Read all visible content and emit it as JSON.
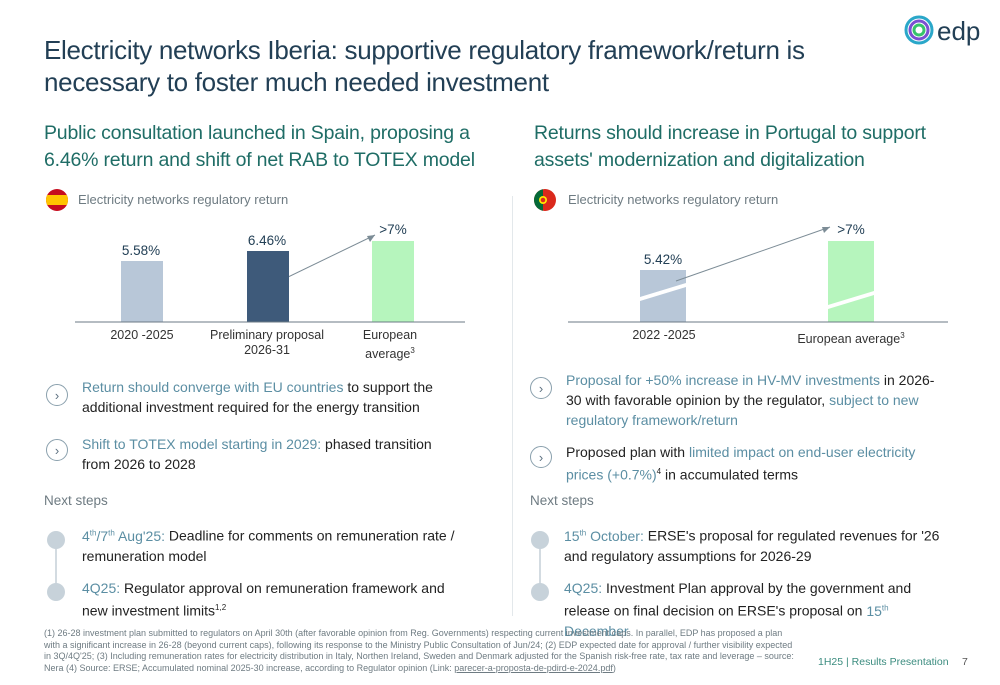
{
  "title": "Electricity networks Iberia: supportive regulatory framework/return is necessary to foster much needed investment",
  "logo": {
    "text": "edp"
  },
  "left": {
    "subhead": "Public consultation launched in Spain, proposing a 6.46% return and shift of net RAB to TOTEX model",
    "chart_label": "Electricity networks regulatory return",
    "bars": [
      {
        "value_label": "5.58%",
        "category": "2020 -2025",
        "category2": "",
        "value": 5.58
      },
      {
        "value_label": "6.46%",
        "category": "Preliminary proposal",
        "category2": "2026-31",
        "value": 6.46
      },
      {
        "value_label": ">7%",
        "category": "European",
        "category2": "average",
        "sup": "3",
        "value": 7.0
      }
    ],
    "bullet1_teal": "Return should converge with EU countries",
    "bullet1_rest": " to support the additional investment required for the energy transition",
    "bullet2_teal": "Shift to TOTEX model starting in 2029:",
    "bullet2_rest": " phased transition from 2026 to 2028",
    "next_steps": "Next steps",
    "step1_pre": "4",
    "step1_sup1": "th",
    "step1_mid": "/7",
    "step1_sup2": "th",
    "step1_teal": " Aug'25:",
    "step1_rest": " Deadline for comments on remuneration rate / remuneration model",
    "step2_teal": "4Q25:",
    "step2_rest": " Regulator approval on remuneration framework and new investment limits",
    "step2_sup": "1,2"
  },
  "right": {
    "subhead": "Returns should increase in Portugal to support assets' modernization and digitalization",
    "chart_label": "Electricity networks regulatory return",
    "bars": [
      {
        "value_label": "5.42%",
        "category": "2022 -2025",
        "value": 5.42
      },
      {
        "value_label": ">7%",
        "category": "European average",
        "sup": "3",
        "value": 7.0
      }
    ],
    "bullet1_teal": "Proposal for +50% increase in HV-MV investments",
    "bullet1_rest": " in 2026-30 with favorable opinion by the regulator, ",
    "bullet1_teal2": "subject to new regulatory framework/return",
    "bullet2_pre": "Proposed plan with ",
    "bullet2_teal": "limited impact on end-user electricity prices (+0.7%)",
    "bullet2_sup": "4",
    "bullet2_rest": " in accumulated terms",
    "next_steps": "Next steps",
    "step1_pre": "15",
    "step1_sup": "th",
    "step1_teal": " October:",
    "step1_rest": " ERSE's proposal for regulated revenues for '26 and regulatory assumptions for 2026-29",
    "step2_teal": "4Q25:",
    "step2_rest": " Investment Plan approval by the government and release on final decision on ERSE's proposal on ",
    "step2_teal2": "15",
    "step2_sup": "th",
    "step2_teal3": " December"
  },
  "footnote": "(1) 26-28 investment plan submitted to regulators on April 30th (after favorable opinion from Reg. Governments) respecting current investment caps. In parallel, EDP has proposed a plan with a significant increase in 26-28 (beyond current caps), following its response to the Ministry Public Consultation of Jun/24; (2) EDP expected date for approval / further visibility expected in 3Q/4Q'25; (3) Including remuneration rates for electricity distribution in Italy, Northen Ireland, Sweden and Denmark adjusted for the Spanish risk-free rate, tax rate and leverage – source: Nera (4) Source: ERSE; Accumulated nominal 2025-30 increase, according to Regulator opinion (Link: ",
  "footnote_link": "parecer-a-proposta-de-pdird-e-2024.pdf",
  "footnote_end": ")",
  "footer_text": "1H25 | Results Presentation",
  "page_number": "7",
  "colors": {
    "teal": "#1f6d66",
    "navy": "#223f55",
    "bar_light": "#b8c7d8",
    "bar_dark": "#3e5a7a",
    "bar_green": "#b6f5bd"
  }
}
